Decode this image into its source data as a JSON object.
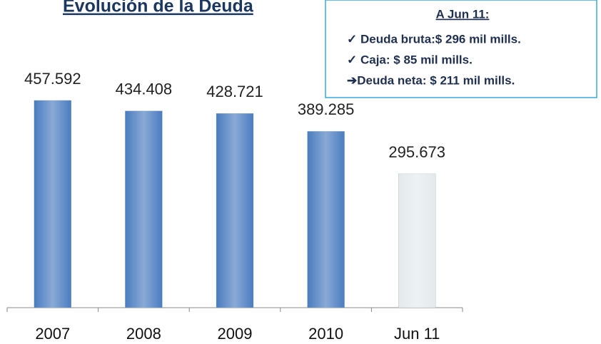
{
  "chart_data": {
    "type": "bar",
    "title": "Evolución de la Deuda",
    "categories": [
      "2007",
      "2008",
      "2009",
      "2010",
      "Jun 11"
    ],
    "values": [
      457.592,
      434.408,
      428.721,
      389.285,
      295.673
    ],
    "colors": [
      "#4a7cc0",
      "#4a7cc0",
      "#4a7cc0",
      "#4a7cc0",
      "#e4eaec"
    ],
    "annotation": {
      "title": "A Jun 11:",
      "lines": [
        "✓ Deuda bruta:$ 296 mil mills.",
        "✓ Caja: $ 85 mil mills.",
        "➔Deuda neta: $ 211 mil mills."
      ]
    }
  }
}
